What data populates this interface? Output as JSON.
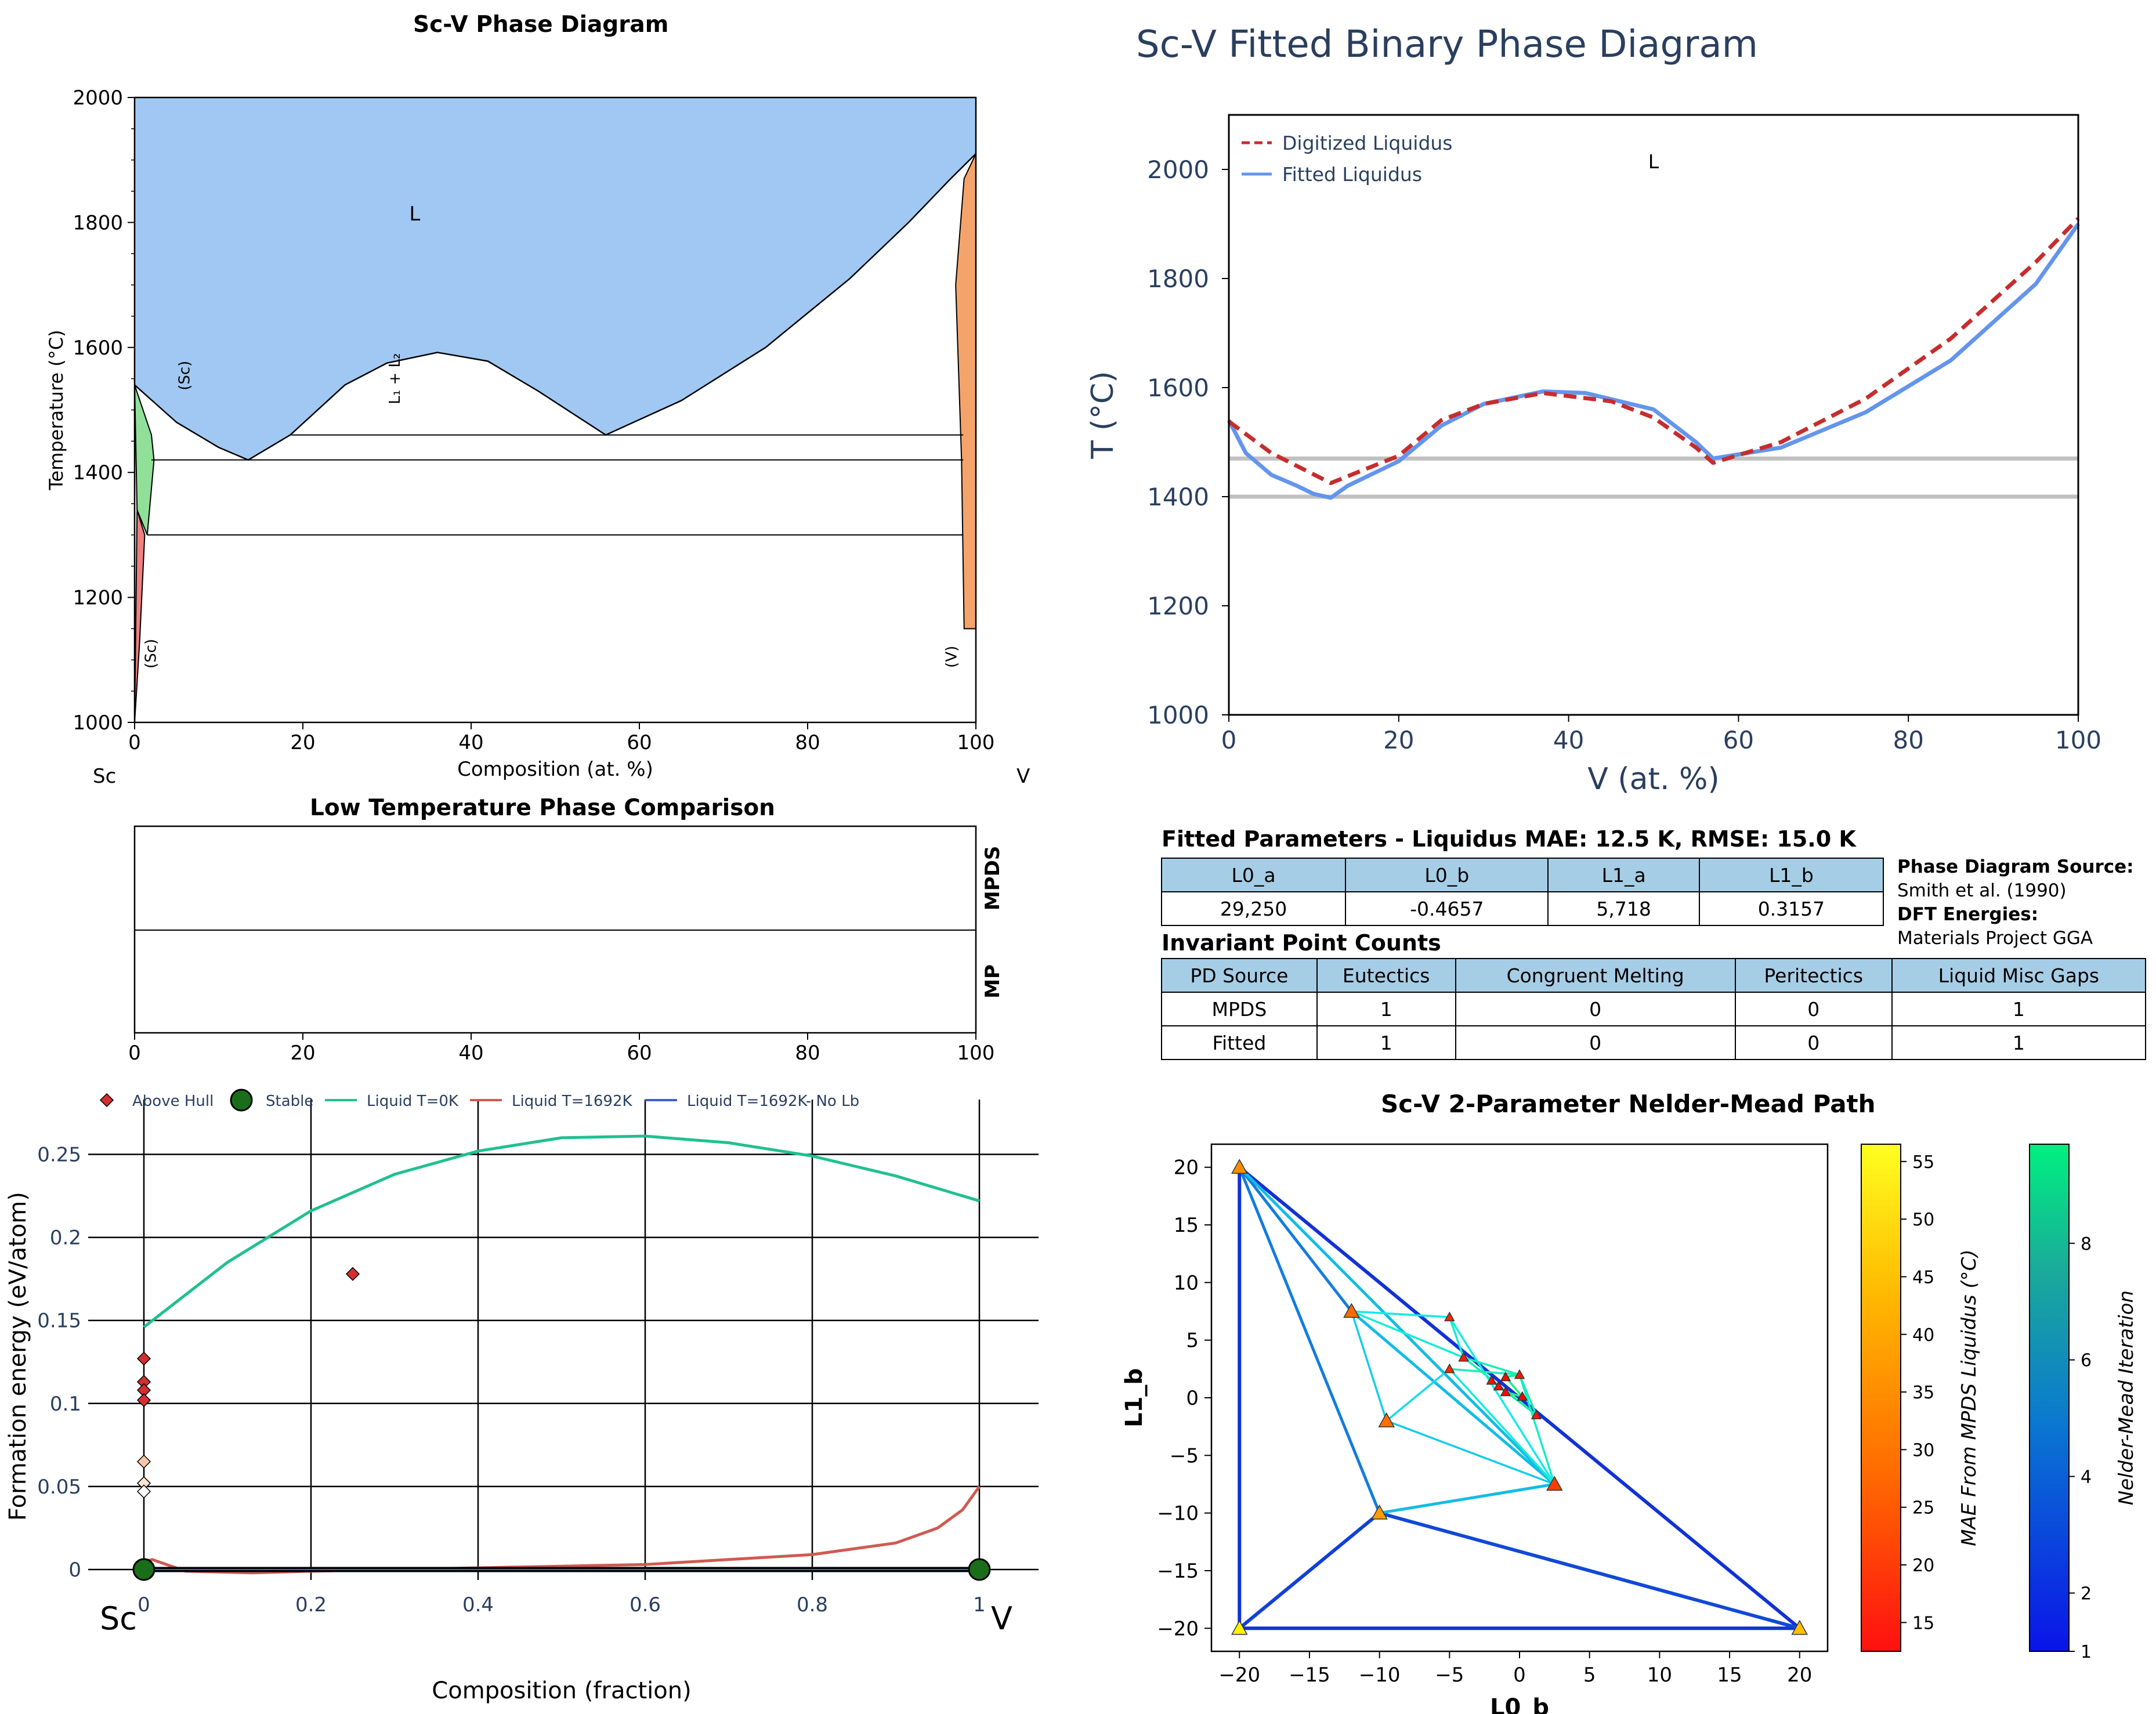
{
  "panels": {
    "tl": {
      "title": "Sc-V Phase Diagram",
      "xlabel": "Composition (at. %)",
      "ylabel": "Temperature (°C)",
      "left_element": "Sc",
      "right_element": "V",
      "xticks": [
        "0",
        "20",
        "40",
        "60",
        "80",
        "100"
      ],
      "yticks": [
        "1000",
        "1200",
        "1400",
        "1600",
        "1800",
        "2000"
      ],
      "labels": {
        "liquid": "L",
        "sc_high": "(Sc)",
        "sc_low": "(Sc)",
        "v": "(V)",
        "misc": "L₁ + L₂"
      },
      "colors": {
        "liquid": "#a0c8f2",
        "sc_high": "#90e09a",
        "sc_low": "#f08080",
        "v": "#f4a46a"
      }
    },
    "tr": {
      "title": "Sc-V Fitted Binary Phase Diagram",
      "xlabel": "V (at. %)",
      "ylabel": "T (°C)",
      "xticks": [
        "0",
        "20",
        "40",
        "60",
        "80",
        "100"
      ],
      "yticks": [
        "1000",
        "1200",
        "1400",
        "1600",
        "1800",
        "2000"
      ],
      "legend": [
        "Digitized Liquidus",
        "Fitted Liquidus"
      ],
      "region_label": "L",
      "colors": {
        "digitized": "#c62d2d",
        "fitted": "#6495ed",
        "invariant": "#c0c0c0"
      }
    },
    "ml": {
      "title": "Low Temperature Phase Comparison",
      "row_labels": [
        "MPDS",
        "MP"
      ],
      "xticks": [
        "0",
        "20",
        "40",
        "60",
        "80",
        "100"
      ]
    },
    "bl": {
      "xlabel": "Composition (fraction)",
      "ylabel": "Formation energy (eV/atom)",
      "left_element": "Sc",
      "right_element": "V",
      "xticks": [
        "0",
        "0.2",
        "0.4",
        "0.6",
        "0.8",
        "1"
      ],
      "yticks": [
        "0",
        "0.05",
        "0.1",
        "0.15",
        "0.2",
        "0.25"
      ],
      "legend": [
        "Above Hull",
        "Stable",
        "Liquid T=0K",
        "Liquid T=1692K",
        "Liquid T=1692K- No Lb"
      ],
      "colors": {
        "above_hull": "#d03030",
        "stable": "#1a6e1a",
        "liquid_0k": "#20c090",
        "liquid_1692": "#d05a50",
        "liquid_nolb": "#4060d0"
      }
    },
    "br": {
      "title": "Sc-V 2-Parameter Nelder-Mead Path",
      "xlabel": "L0_b",
      "ylabel": "L1_b",
      "xticks": [
        "−20",
        "−15",
        "−10",
        "−5",
        "0",
        "5",
        "10",
        "15",
        "20"
      ],
      "yticks": [
        "−20",
        "−15",
        "−10",
        "−5",
        "0",
        "5",
        "10",
        "15",
        "20"
      ],
      "cbar1_label": "MAE From MPDS Liquidus (°C)",
      "cbar1_ticks": [
        "15",
        "20",
        "25",
        "30",
        "35",
        "40",
        "45",
        "50",
        "55"
      ],
      "cbar2_label": "Nelder-Mead Iteration",
      "cbar2_ticks": [
        "1",
        "2",
        "4",
        "6",
        "8"
      ]
    }
  },
  "tables": {
    "params": {
      "title": "Fitted Parameters - Liquidus MAE: 12.5 K, RMSE: 15.0 K",
      "headers": [
        "L0_a",
        "L0_b",
        "L1_a",
        "L1_b"
      ],
      "row": [
        "29,250",
        "-0.4657",
        "5,718",
        "0.3157"
      ]
    },
    "source": {
      "pd_label": "Phase Diagram Source:",
      "pd_value": "Smith et al. (1990)",
      "dft_label": "DFT Energies:",
      "dft_value": "Materials Project GGA"
    },
    "invariants": {
      "title": "Invariant Point Counts",
      "headers": [
        "PD Source",
        "Eutectics",
        "Congruent Melting",
        "Peritectics",
        "Liquid Misc Gaps"
      ],
      "rows": [
        [
          "MPDS",
          "1",
          "0",
          "0",
          "1"
        ],
        [
          "Fitted",
          "1",
          "0",
          "0",
          "1"
        ]
      ]
    }
  },
  "chart_data": [
    {
      "type": "area",
      "title": "Sc-V Phase Diagram",
      "xlabel": "Composition (at. %)",
      "ylabel": "Temperature (°C)",
      "xlim": [
        0,
        100
      ],
      "ylim": [
        1000,
        2000
      ],
      "liquidus": {
        "x": [
          0,
          5,
          10,
          13.5,
          18.5,
          25,
          30,
          36,
          42,
          48,
          52,
          56,
          65,
          75,
          85,
          92,
          97,
          100
        ],
        "y": [
          1540,
          1480,
          1440,
          1420,
          1460,
          1540,
          1575,
          1592,
          1578,
          1530,
          1495,
          1460,
          1515,
          1600,
          1710,
          1800,
          1870,
          1910
        ]
      },
      "invariants": [
        {
          "T": 1460,
          "x": [
            18.5,
            98.5
          ]
        },
        {
          "T": 1420,
          "x": [
            2,
            98.5
          ]
        },
        {
          "T": 1300,
          "x": [
            1.5,
            98.5
          ]
        }
      ],
      "regions": [
        "L",
        "(Sc)",
        "(Sc)",
        "(V)",
        "L₁ + L₂"
      ]
    },
    {
      "type": "line",
      "title": "Sc-V Fitted Binary Phase Diagram",
      "xlabel": "V (at. %)",
      "ylabel": "T (°C)",
      "xlim": [
        0,
        100
      ],
      "ylim": [
        1000,
        2100
      ],
      "series": [
        {
          "name": "Digitized Liquidus",
          "x": [
            0,
            5,
            12,
            20,
            25,
            30,
            37,
            45,
            50,
            55,
            57,
            65,
            75,
            85,
            95,
            100
          ],
          "y": [
            1538,
            1480,
            1425,
            1475,
            1540,
            1570,
            1590,
            1575,
            1545,
            1490,
            1462,
            1500,
            1580,
            1690,
            1830,
            1910
          ]
        },
        {
          "name": "Fitted Liquidus",
          "x": [
            0,
            2,
            5,
            8,
            10,
            12,
            14,
            18,
            20,
            25,
            30,
            37,
            42,
            50,
            55,
            57,
            65,
            75,
            85,
            95,
            100
          ],
          "y": [
            1540,
            1480,
            1440,
            1420,
            1405,
            1398,
            1420,
            1450,
            1465,
            1530,
            1570,
            1593,
            1590,
            1560,
            1500,
            1470,
            1490,
            1555,
            1650,
            1790,
            1900
          ]
        }
      ],
      "hlines": [
        1470,
        1400
      ]
    },
    {
      "type": "table",
      "title": "Low Temperature Phase Comparison",
      "rows": [
        "MPDS",
        "MP"
      ],
      "xlim": [
        0,
        100
      ]
    },
    {
      "type": "scatter",
      "xlabel": "Composition (fraction)",
      "ylabel": "Formation energy (eV/atom)",
      "xlim": [
        0,
        1
      ],
      "ylim": [
        0,
        0.27
      ],
      "series": [
        {
          "name": "Above Hull",
          "x": [
            0,
            0,
            0,
            0,
            0.25
          ],
          "y": [
            0.127,
            0.113,
            0.108,
            0.102,
            0.178
          ]
        },
        {
          "name": "Above Hull (near hull)",
          "x": [
            0,
            0,
            0
          ],
          "y": [
            0.065,
            0.052,
            0.047
          ]
        },
        {
          "name": "Stable",
          "x": [
            0,
            1
          ],
          "y": [
            0,
            0
          ]
        },
        {
          "name": "Liquid T=0K",
          "x": [
            0,
            0.1,
            0.2,
            0.3,
            0.4,
            0.5,
            0.6,
            0.7,
            0.8,
            0.9,
            1.0
          ],
          "y": [
            0.146,
            0.185,
            0.216,
            0.238,
            0.252,
            0.26,
            0.261,
            0.257,
            0.249,
            0.237,
            0.222
          ]
        },
        {
          "name": "Liquid T=1692K",
          "x": [
            0,
            0.01,
            0.05,
            0.13,
            0.2,
            0.4,
            0.6,
            0.8,
            0.9,
            0.95,
            0.98,
            1.0
          ],
          "y": [
            0.005,
            0.006,
            -0.001,
            -0.002,
            -0.001,
            0.001,
            0.003,
            0.009,
            0.016,
            0.025,
            0.036,
            0.05
          ]
        },
        {
          "name": "Liquid T=1692K- No Lb",
          "x": [
            0,
            1
          ],
          "y": [
            0,
            0
          ]
        }
      ]
    },
    {
      "type": "scatter",
      "title": "Sc-V 2-Parameter Nelder-Mead Path",
      "xlabel": "L0_b",
      "ylabel": "L1_b",
      "xlim": [
        -22,
        22
      ],
      "ylim": [
        -22,
        22
      ],
      "points": [
        {
          "x": -20,
          "y": 20,
          "mae": 38
        },
        {
          "x": -20,
          "y": -20,
          "mae": 56
        },
        {
          "x": 20,
          "y": -20,
          "mae": 47
        },
        {
          "x": -12,
          "y": 7.5,
          "mae": 32
        },
        {
          "x": -10,
          "y": -10,
          "mae": 41
        },
        {
          "x": -9.5,
          "y": -2,
          "mae": 33
        },
        {
          "x": 2.5,
          "y": -7.5,
          "mae": 24
        },
        {
          "x": -5,
          "y": 7,
          "mae": 20
        },
        {
          "x": -5,
          "y": 2.5,
          "mae": 20
        },
        {
          "x": -4,
          "y": 3.5,
          "mae": 18
        },
        {
          "x": 0,
          "y": 2,
          "mae": 17
        },
        {
          "x": 1.2,
          "y": -1.5,
          "mae": 17
        },
        {
          "x": -2,
          "y": 1.5,
          "mae": 16
        },
        {
          "x": -1.5,
          "y": 1,
          "mae": 15
        },
        {
          "x": -1,
          "y": 0.5,
          "mae": 14
        },
        {
          "x": -1,
          "y": 1.8,
          "mae": 14
        },
        {
          "x": 0.2,
          "y": 0.1,
          "mae": 13
        }
      ],
      "mae_range": [
        13,
        57
      ],
      "iteration_range": [
        1,
        10
      ]
    }
  ]
}
